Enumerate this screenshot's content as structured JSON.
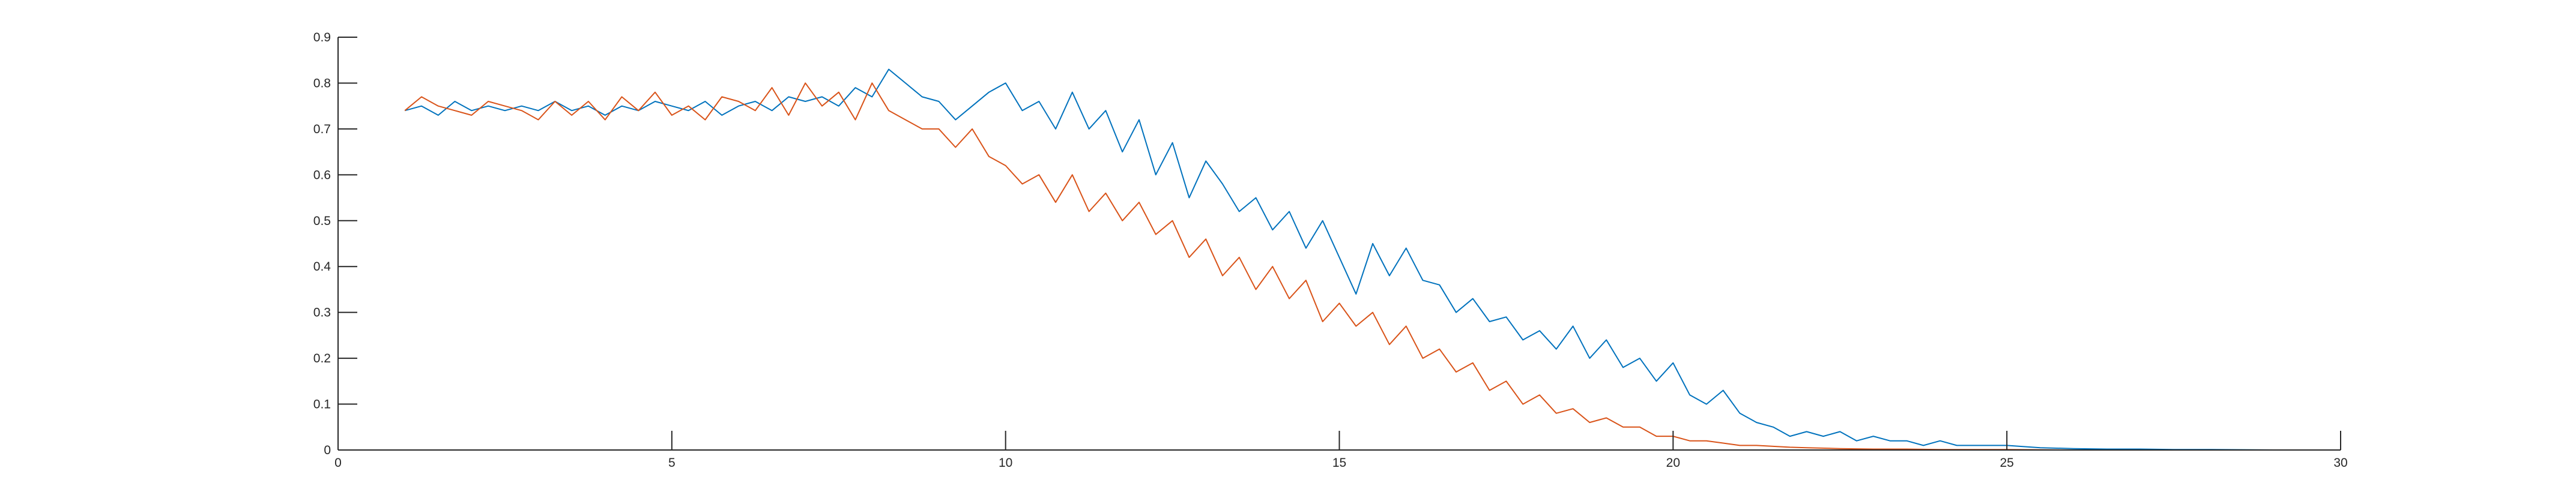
{
  "chart_data": {
    "type": "line",
    "title": "",
    "xlabel": "",
    "ylabel": "",
    "xlim": [
      0,
      30
    ],
    "ylim": [
      0,
      0.9
    ],
    "xticks": [
      "0",
      "5",
      "10",
      "15",
      "20",
      "25",
      "30"
    ],
    "yticks": [
      "0",
      "0.1",
      "0.2",
      "0.3",
      "0.4",
      "0.5",
      "0.6",
      "0.7",
      "0.8",
      "0.9"
    ],
    "grid": false,
    "legend": "none",
    "series": [
      {
        "color": "#0072bd",
        "x": [
          1,
          1.25,
          1.5,
          1.75,
          2,
          2.25,
          2.5,
          2.75,
          3,
          3.25,
          3.5,
          3.75,
          4,
          4.25,
          4.5,
          4.75,
          5,
          5.25,
          5.5,
          5.75,
          6,
          6.25,
          6.5,
          6.75,
          7,
          7.25,
          7.5,
          7.75,
          8,
          8.25,
          8.5,
          8.75,
          9,
          9.25,
          9.5,
          9.75,
          10,
          10.25,
          10.5,
          10.75,
          11,
          11.25,
          11.5,
          11.75,
          12,
          12.25,
          12.5,
          12.75,
          13,
          13.25,
          13.5,
          13.75,
          14,
          14.25,
          14.5,
          14.75,
          15,
          15.25,
          15.5,
          15.75,
          16,
          16.25,
          16.5,
          16.75,
          17,
          17.25,
          17.5,
          17.75,
          18,
          18.25,
          18.5,
          18.75,
          19,
          19.25,
          19.5,
          19.75,
          20,
          20.25,
          20.5,
          20.75,
          21,
          21.25,
          21.5,
          21.75,
          22,
          22.25,
          22.5,
          22.75,
          23,
          23.25,
          23.5,
          23.75,
          24,
          24.25,
          24.5,
          24.75,
          25,
          25.5,
          26,
          26.5,
          27,
          27.5,
          28,
          29,
          30
        ],
        "y": [
          0.74,
          0.75,
          0.73,
          0.76,
          0.74,
          0.75,
          0.74,
          0.75,
          0.74,
          0.76,
          0.74,
          0.75,
          0.73,
          0.75,
          0.74,
          0.76,
          0.75,
          0.74,
          0.76,
          0.73,
          0.75,
          0.76,
          0.74,
          0.77,
          0.76,
          0.77,
          0.75,
          0.79,
          0.77,
          0.83,
          0.8,
          0.77,
          0.76,
          0.72,
          0.75,
          0.78,
          0.8,
          0.74,
          0.76,
          0.7,
          0.78,
          0.7,
          0.74,
          0.65,
          0.72,
          0.6,
          0.67,
          0.55,
          0.63,
          0.58,
          0.52,
          0.55,
          0.48,
          0.52,
          0.44,
          0.5,
          0.42,
          0.34,
          0.45,
          0.38,
          0.44,
          0.37,
          0.36,
          0.3,
          0.33,
          0.28,
          0.29,
          0.24,
          0.26,
          0.22,
          0.27,
          0.2,
          0.24,
          0.18,
          0.2,
          0.15,
          0.19,
          0.12,
          0.1,
          0.13,
          0.08,
          0.06,
          0.05,
          0.03,
          0.04,
          0.03,
          0.04,
          0.02,
          0.03,
          0.02,
          0.02,
          0.01,
          0.02,
          0.01,
          0.01,
          0.01,
          0.01,
          0.005,
          0.003,
          0.002,
          0.002,
          0.001,
          0.001,
          0,
          0
        ]
      },
      {
        "color": "#d95319",
        "x": [
          1,
          1.25,
          1.5,
          1.75,
          2,
          2.25,
          2.5,
          2.75,
          3,
          3.25,
          3.5,
          3.75,
          4,
          4.25,
          4.5,
          4.75,
          5,
          5.25,
          5.5,
          5.75,
          6,
          6.25,
          6.5,
          6.75,
          7,
          7.25,
          7.5,
          7.75,
          8,
          8.25,
          8.5,
          8.75,
          9,
          9.25,
          9.5,
          9.75,
          10,
          10.25,
          10.5,
          10.75,
          11,
          11.25,
          11.5,
          11.75,
          12,
          12.25,
          12.5,
          12.75,
          13,
          13.25,
          13.5,
          13.75,
          14,
          14.25,
          14.5,
          14.75,
          15,
          15.25,
          15.5,
          15.75,
          16,
          16.25,
          16.5,
          16.75,
          17,
          17.25,
          17.5,
          17.75,
          18,
          18.25,
          18.5,
          18.75,
          19,
          19.25,
          19.5,
          19.75,
          20,
          20.25,
          20.5,
          20.75,
          21,
          21.25,
          21.5,
          21.75,
          22,
          22.5,
          23,
          23.5,
          24,
          24.5,
          25,
          26,
          27,
          28,
          29,
          30
        ],
        "y": [
          0.74,
          0.77,
          0.75,
          0.74,
          0.73,
          0.76,
          0.75,
          0.74,
          0.72,
          0.76,
          0.73,
          0.76,
          0.72,
          0.77,
          0.74,
          0.78,
          0.73,
          0.75,
          0.72,
          0.77,
          0.76,
          0.74,
          0.79,
          0.73,
          0.8,
          0.75,
          0.78,
          0.72,
          0.8,
          0.74,
          0.72,
          0.7,
          0.7,
          0.66,
          0.7,
          0.64,
          0.62,
          0.58,
          0.6,
          0.54,
          0.6,
          0.52,
          0.56,
          0.5,
          0.54,
          0.47,
          0.5,
          0.42,
          0.46,
          0.38,
          0.42,
          0.35,
          0.4,
          0.33,
          0.37,
          0.28,
          0.32,
          0.27,
          0.3,
          0.23,
          0.27,
          0.2,
          0.22,
          0.17,
          0.19,
          0.13,
          0.15,
          0.1,
          0.12,
          0.08,
          0.09,
          0.06,
          0.07,
          0.05,
          0.05,
          0.03,
          0.03,
          0.02,
          0.02,
          0.015,
          0.01,
          0.01,
          0.008,
          0.006,
          0.005,
          0.003,
          0.002,
          0.002,
          0.001,
          0.001,
          0.001,
          0,
          0,
          0,
          0,
          0
        ]
      }
    ]
  }
}
